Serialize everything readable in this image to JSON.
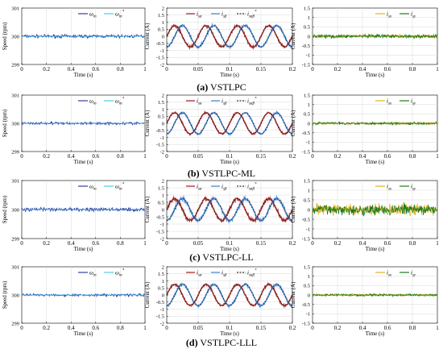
{
  "captions": [
    {
      "letter": "(a)",
      "text": "VSTLPC"
    },
    {
      "letter": "(b)",
      "text": "VSTLPC-ML"
    },
    {
      "letter": "(c)",
      "text": "VSTLPC-LL"
    },
    {
      "letter": "(d)",
      "text": "VSTLPC-LLL"
    }
  ],
  "colors": {
    "speed": "#1f2d9a",
    "speed_ref": "#38c8e8",
    "isalpha": "#a51b1b",
    "isbeta": "#3f7fd0",
    "ref": "#000000",
    "isx": "#e3b21b",
    "isy": "#1f7a1f"
  },
  "chart_data": [
    {
      "type": "line",
      "panel": "speed",
      "row": "a",
      "xlabel": "Time (s)",
      "ylabel": "Speed (rpm)",
      "xlim": [
        0,
        1
      ],
      "ylim": [
        299,
        301
      ],
      "xticks": [
        "0",
        "0.2",
        "0.4",
        "0.6",
        "0.8",
        "1"
      ],
      "yticks": [
        "299",
        "300",
        "301"
      ],
      "legend": [
        "ω_m",
        "ω_m*"
      ],
      "value": 300,
      "noise": 0.06,
      "grid": true
    },
    {
      "type": "line",
      "panel": "current",
      "row": "a",
      "xlabel": "Time (s)",
      "ylabel": "Current (A)",
      "xlim": [
        0,
        0.2
      ],
      "ylim": [
        -2,
        2
      ],
      "xticks": [
        "0",
        "0.05",
        "0.1",
        "0.15",
        "0.2"
      ],
      "yticks": [
        "-2",
        "-1.5",
        "-1",
        "-0.5",
        "0",
        "0.5",
        "1",
        "1.5",
        "2"
      ],
      "legend": [
        "i_sα",
        "i_sβ",
        "i_sαβ*"
      ],
      "amplitude": 0.75,
      "frequency_hz": 20,
      "noise": 0.08,
      "grid": true
    },
    {
      "type": "line",
      "panel": "xy",
      "row": "a",
      "xlabel": "Time (s)",
      "ylabel": "Current (A)",
      "xlim": [
        0,
        1
      ],
      "ylim": [
        -1.5,
        1.5
      ],
      "xticks": [
        "0",
        "0.2",
        "0.4",
        "0.6",
        "0.8",
        "1"
      ],
      "yticks": [
        "-1.5",
        "-1",
        "-0.5",
        "0",
        "0.5",
        "1",
        "1.5"
      ],
      "legend": [
        "i_sx",
        "i_sy"
      ],
      "x_value": 0,
      "y_value": 0,
      "noise": 0.1,
      "grid": true
    },
    {
      "type": "line",
      "panel": "speed",
      "row": "b",
      "xlabel": "Time (s)",
      "ylabel": "Speed (rpm)",
      "xlim": [
        0,
        1
      ],
      "ylim": [
        299,
        301
      ],
      "xticks": [
        "0",
        "0.2",
        "0.4",
        "0.6",
        "0.8",
        "1"
      ],
      "yticks": [
        "299",
        "300",
        "301"
      ],
      "legend": [
        "ω_m",
        "ω_m*"
      ],
      "value": 300,
      "noise": 0.05,
      "grid": true
    },
    {
      "type": "line",
      "panel": "current",
      "row": "b",
      "xlabel": "Time (s)",
      "ylabel": "Current (A)",
      "xlim": [
        0,
        0.2
      ],
      "ylim": [
        -2,
        2
      ],
      "xticks": [
        "0",
        "0.05",
        "0.1",
        "0.15",
        "0.2"
      ],
      "yticks": [
        "-2",
        "-1.5",
        "-1",
        "-0.5",
        "0",
        "0.5",
        "1",
        "1.5",
        "2"
      ],
      "legend": [
        "i_sα",
        "i_sβ",
        "i_sαβ*"
      ],
      "amplitude": 0.75,
      "frequency_hz": 20,
      "noise": 0.06,
      "grid": true
    },
    {
      "type": "line",
      "panel": "xy",
      "row": "b",
      "xlabel": "Time (s)",
      "ylabel": "Current (A)",
      "xlim": [
        0,
        1
      ],
      "ylim": [
        -1.5,
        1.5
      ],
      "xticks": [
        "0",
        "0.2",
        "0.4",
        "0.6",
        "0.8",
        "1"
      ],
      "yticks": [
        "-1.5",
        "-1",
        "-0.5",
        "0",
        "0.5",
        "1",
        "1.5"
      ],
      "legend": [
        "i_sx",
        "i_sy"
      ],
      "x_value": 0,
      "y_value": 0,
      "noise": 0.07,
      "grid": true
    },
    {
      "type": "line",
      "panel": "speed",
      "row": "c",
      "xlabel": "Time (s)",
      "ylabel": "Speed (rpm)",
      "xlim": [
        0,
        1
      ],
      "ylim": [
        299,
        301
      ],
      "xticks": [
        "0",
        "0.2",
        "0.4",
        "0.6",
        "0.8",
        "1"
      ],
      "yticks": [
        "299",
        "300",
        "301"
      ],
      "legend": [
        "ω_m",
        "ω_m*"
      ],
      "value": 300,
      "noise": 0.07,
      "grid": true
    },
    {
      "type": "line",
      "panel": "current",
      "row": "c",
      "xlabel": "Time (s)",
      "ylabel": "Current (A)",
      "xlim": [
        0,
        0.2
      ],
      "ylim": [
        -2,
        2
      ],
      "xticks": [
        "0",
        "0.05",
        "0.1",
        "0.15",
        "0.2"
      ],
      "yticks": [
        "-2",
        "-1.5",
        "-1",
        "-0.5",
        "0",
        "0.5",
        "1",
        "1.5",
        "2"
      ],
      "legend": [
        "i_sα",
        "i_sβ",
        "i_sαβ*"
      ],
      "amplitude": 0.75,
      "frequency_hz": 20,
      "noise": 0.12,
      "grid": true
    },
    {
      "type": "line",
      "panel": "xy",
      "row": "c",
      "xlabel": "Time (s)",
      "ylabel": "Current (A)",
      "xlim": [
        0,
        1
      ],
      "ylim": [
        -1.5,
        1.5
      ],
      "xticks": [
        "0",
        "0.2",
        "0.4",
        "0.6",
        "0.8",
        "1"
      ],
      "yticks": [
        "-1.5",
        "-1",
        "-0.5",
        "0",
        "0.5",
        "1",
        "1.5"
      ],
      "legend": [
        "i_sx",
        "i_sy"
      ],
      "x_value": 0,
      "y_value": 0,
      "noise": 0.3,
      "grid": true
    },
    {
      "type": "line",
      "panel": "speed",
      "row": "d",
      "xlabel": "Time (s)",
      "ylabel": "Speed (rpm)",
      "xlim": [
        0,
        1
      ],
      "ylim": [
        299,
        301
      ],
      "xticks": [
        "0",
        "0.2",
        "0.4",
        "0.6",
        "0.8",
        "1"
      ],
      "yticks": [
        "299",
        "300",
        "301"
      ],
      "legend": [
        "ω_m",
        "ω_m*"
      ],
      "value": 300,
      "noise": 0.05,
      "grid": true
    },
    {
      "type": "line",
      "panel": "current",
      "row": "d",
      "xlabel": "Time (s)",
      "ylabel": "Current (A)",
      "xlim": [
        0,
        0.2
      ],
      "ylim": [
        -2,
        2
      ],
      "xticks": [
        "0",
        "0.05",
        "0.1",
        "0.15",
        "0.2"
      ],
      "yticks": [
        "-2",
        "-1.5",
        "-1",
        "-0.5",
        "0",
        "0.5",
        "1",
        "1.5",
        "2"
      ],
      "legend": [
        "i_sα",
        "i_sβ",
        "i_sαβ*"
      ],
      "amplitude": 0.75,
      "frequency_hz": 20,
      "noise": 0.07,
      "grid": true
    },
    {
      "type": "line",
      "panel": "xy",
      "row": "d",
      "xlabel": "Time (s)",
      "ylabel": "Current (A)",
      "xlim": [
        0,
        1
      ],
      "ylim": [
        -1.5,
        1.5
      ],
      "xticks": [
        "0",
        "0.2",
        "0.4",
        "0.6",
        "0.8",
        "1"
      ],
      "yticks": [
        "-1.5",
        "-1",
        "-0.5",
        "0",
        "0.5",
        "1",
        "1.5"
      ],
      "legend": [
        "i_sx",
        "i_sy"
      ],
      "x_value": 0,
      "y_value": 0,
      "noise": 0.06,
      "grid": true
    }
  ]
}
